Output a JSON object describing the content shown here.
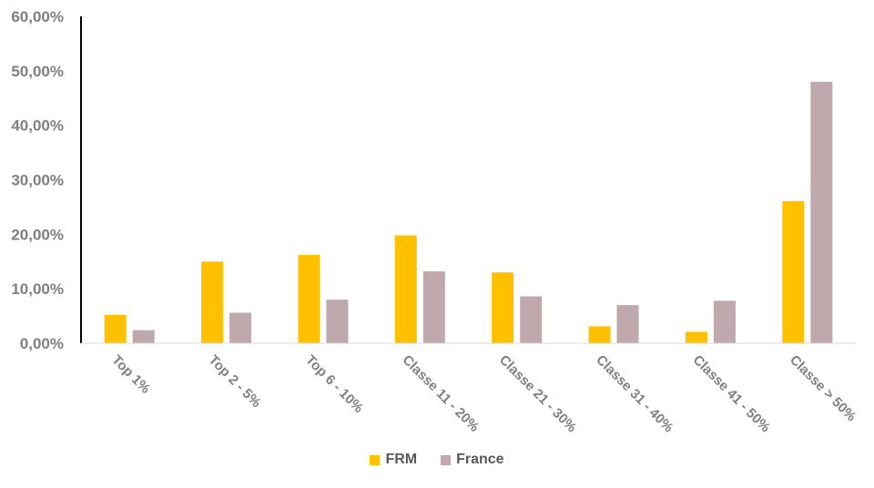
{
  "chart_data": {
    "type": "bar",
    "categories": [
      "Top 1%",
      "Top 2 - 5%",
      "Top 6 - 10%",
      "Classe 11 - 20%",
      "Classe 21 - 30%",
      "Classe 31 - 40%",
      "Classe 41 - 50%",
      "Classe > 50%"
    ],
    "series": [
      {
        "name": "FRM",
        "color": "#ffc000",
        "values": [
          5.2,
          15.0,
          16.2,
          19.8,
          13.0,
          3.1,
          2.1,
          26.1
        ]
      },
      {
        "name": "France",
        "color": "#bfa9ac",
        "values": [
          2.4,
          5.6,
          8.0,
          13.2,
          8.6,
          7.0,
          7.8,
          48.0
        ]
      }
    ],
    "yticks": [
      "0,00%",
      "10,00%",
      "20,00%",
      "30,00%",
      "40,00%",
      "50,00%",
      "60,00%"
    ],
    "ylim": [
      0,
      60
    ],
    "grid": false,
    "legend_position": "bottom",
    "title": "",
    "xlabel": "",
    "ylabel": ""
  }
}
